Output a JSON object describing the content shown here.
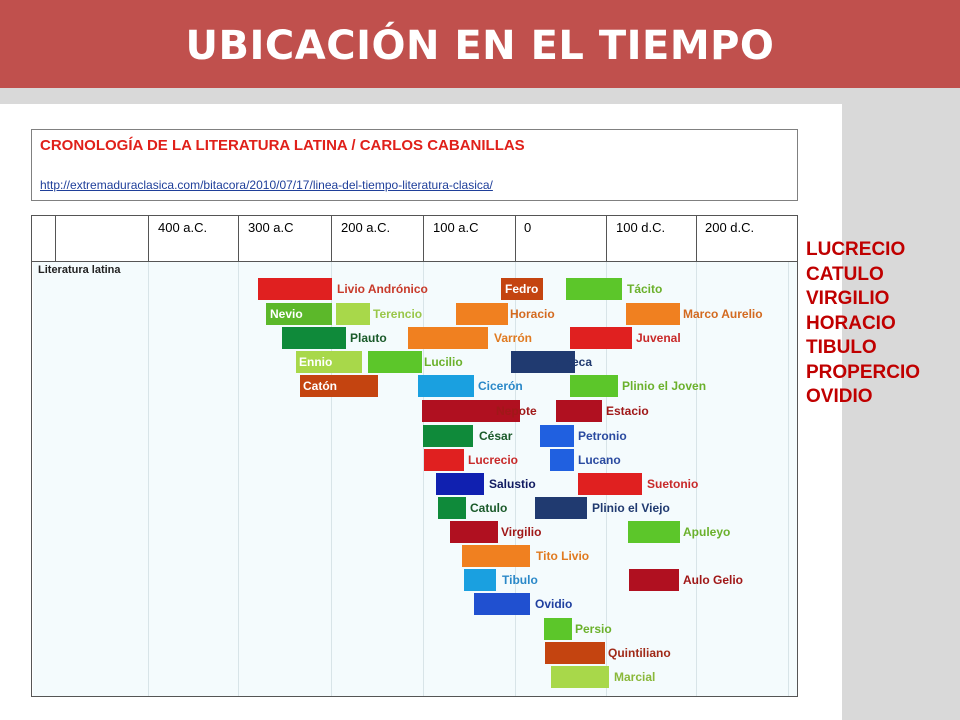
{
  "slide": {
    "title": "UBICACIÓN EN EL TIEMPO",
    "header": {
      "title": "CRONOLOGÍA DE LA LITERATURA LATINA / CARLOS CABANILLAS",
      "link": "http://extremaduraclasica.com/bitacora/2010/07/17/linea-del-tiempo-literatura-clasica/"
    },
    "timeline_headers": [
      "400 a.C.",
      "300 a.C",
      "200 a.C.",
      "100 a.C",
      "0",
      "100 d.C.",
      "200 d.C."
    ],
    "row_label": "Literatura latina",
    "side_list": [
      "LUCRECIO",
      "CATULO",
      "VIRGILIO",
      "HORACIO",
      "TIBULO",
      "PROPERCIO",
      "OVIDIO"
    ]
  },
  "authors": [
    {
      "name": "Livio Andrónico",
      "color": "#e02020",
      "text_color": "#c83a2a"
    },
    {
      "name": "Nevio",
      "color": "#5cb82a",
      "text_color": "#ffffff"
    },
    {
      "name": "Terencio",
      "color": "#a8d84a",
      "text_color": "#9ac74a"
    },
    {
      "name": "Plauto",
      "color": "#0f8a3a",
      "text_color": "#1a5a2a"
    },
    {
      "name": "Ennio",
      "color": "#a8d84a",
      "text_color": "#ffffff"
    },
    {
      "name": "Lucilio",
      "color": "#5cc62a",
      "text_color": "#6bb12c"
    },
    {
      "name": "Catón",
      "color": "#c44410",
      "text_color": "#ffffff"
    },
    {
      "name": "Cicerón",
      "color": "#1aa0e0",
      "text_color": "#2a88c8"
    },
    {
      "name": "Nepote",
      "color": "#b01020",
      "text_color": "#a01818"
    },
    {
      "name": "César",
      "color": "#0f8a3a",
      "text_color": "#1a5a2a"
    },
    {
      "name": "Lucrecio",
      "color": "#e02020",
      "text_color": "#c82a2a"
    },
    {
      "name": "Salustio",
      "color": "#1020b0",
      "text_color": "#101a60"
    },
    {
      "name": "Catulo",
      "color": "#0f8a3a",
      "text_color": "#1a5a2a"
    },
    {
      "name": "Virgilio",
      "color": "#b01020",
      "text_color": "#a01818"
    },
    {
      "name": "Tito Livio",
      "color": "#f08020",
      "text_color": "#e07a20"
    },
    {
      "name": "Tibulo",
      "color": "#1aa0e0",
      "text_color": "#2a88c8"
    },
    {
      "name": "Ovidio",
      "color": "#2050d0",
      "text_color": "#2040a0"
    },
    {
      "name": "Fedro",
      "color": "#c44410",
      "text_color": "#ffffff"
    },
    {
      "name": "Horacio",
      "color": "#f08020",
      "text_color": "#d36a20"
    },
    {
      "name": "Varrón",
      "color": "#f08020",
      "text_color": "#e07a20"
    },
    {
      "name": "Séneca",
      "color": "#203a70",
      "text_color": "#203a70"
    },
    {
      "name": "Petronio",
      "color": "#2060e0",
      "text_color": "#2a4aa0"
    },
    {
      "name": "Lucano",
      "color": "#2060e0",
      "text_color": "#2a4aa0"
    },
    {
      "name": "Plinio el Viejo",
      "color": "#203a70",
      "text_color": "#203a70"
    },
    {
      "name": "Persio",
      "color": "#5cc62a",
      "text_color": "#6bb12c"
    },
    {
      "name": "Quintiliano",
      "color": "#c44410",
      "text_color": "#a02a18"
    },
    {
      "name": "Marcial",
      "color": "#a8d84a",
      "text_color": "#8ab83a"
    },
    {
      "name": "Tácito",
      "color": "#5cc62a",
      "text_color": "#6bb12c"
    },
    {
      "name": "Marco Aurelio",
      "color": "#f08020",
      "text_color": "#d36a20"
    },
    {
      "name": "Juvenal",
      "color": "#e02020",
      "text_color": "#c82a2a"
    },
    {
      "name": "Plinio el Joven",
      "color": "#5cc62a",
      "text_color": "#6bb12c"
    },
    {
      "name": "Estacio",
      "color": "#b01020",
      "text_color": "#a01818"
    },
    {
      "name": "Suetonio",
      "color": "#e02020",
      "text_color": "#c82a2a"
    },
    {
      "name": "Apuleyo",
      "color": "#5cc62a",
      "text_color": "#6bb12c"
    },
    {
      "name": "Aulo Gelio",
      "color": "#b01020",
      "text_color": "#a01818"
    }
  ]
}
